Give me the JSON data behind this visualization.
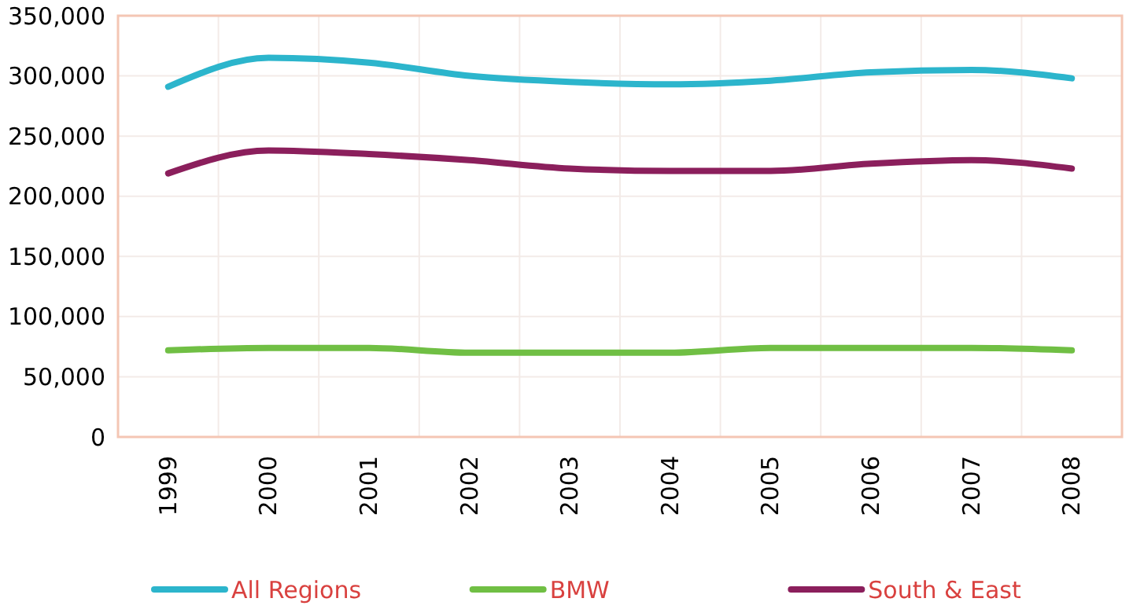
{
  "chart_data": {
    "type": "line",
    "categories": [
      "1999",
      "2000",
      "2001",
      "2002",
      "2003",
      "2004",
      "2005",
      "2006",
      "2007",
      "2008"
    ],
    "series": [
      {
        "name": "All Regions",
        "color": "#2cb5cc",
        "values": [
          291000,
          315000,
          311000,
          300000,
          295000,
          293000,
          296000,
          303000,
          305000,
          298000
        ]
      },
      {
        "name": "BMW",
        "color": "#70bf44",
        "values": [
          72000,
          74000,
          74000,
          70000,
          70000,
          70000,
          74000,
          74000,
          74000,
          72000
        ]
      },
      {
        "name": "South & East",
        "color": "#8b1f5c",
        "values": [
          219000,
          238000,
          235000,
          230000,
          223000,
          221000,
          221000,
          227000,
          230000,
          223000
        ]
      }
    ],
    "ylim": [
      0,
      350000
    ],
    "yticks": [
      {
        "value": 0,
        "label": "0"
      },
      {
        "value": 50000,
        "label": "50,000"
      },
      {
        "value": 100000,
        "label": "100,000"
      },
      {
        "value": 150000,
        "label": "150,000"
      },
      {
        "value": 200000,
        "label": "200,000"
      },
      {
        "value": 250000,
        "label": "250,000"
      },
      {
        "value": 300000,
        "label": "300,000"
      },
      {
        "value": 350000,
        "label": "350,000"
      }
    ],
    "grid": true,
    "legend": "bottom",
    "marker": "none",
    "line_style": "solid"
  }
}
